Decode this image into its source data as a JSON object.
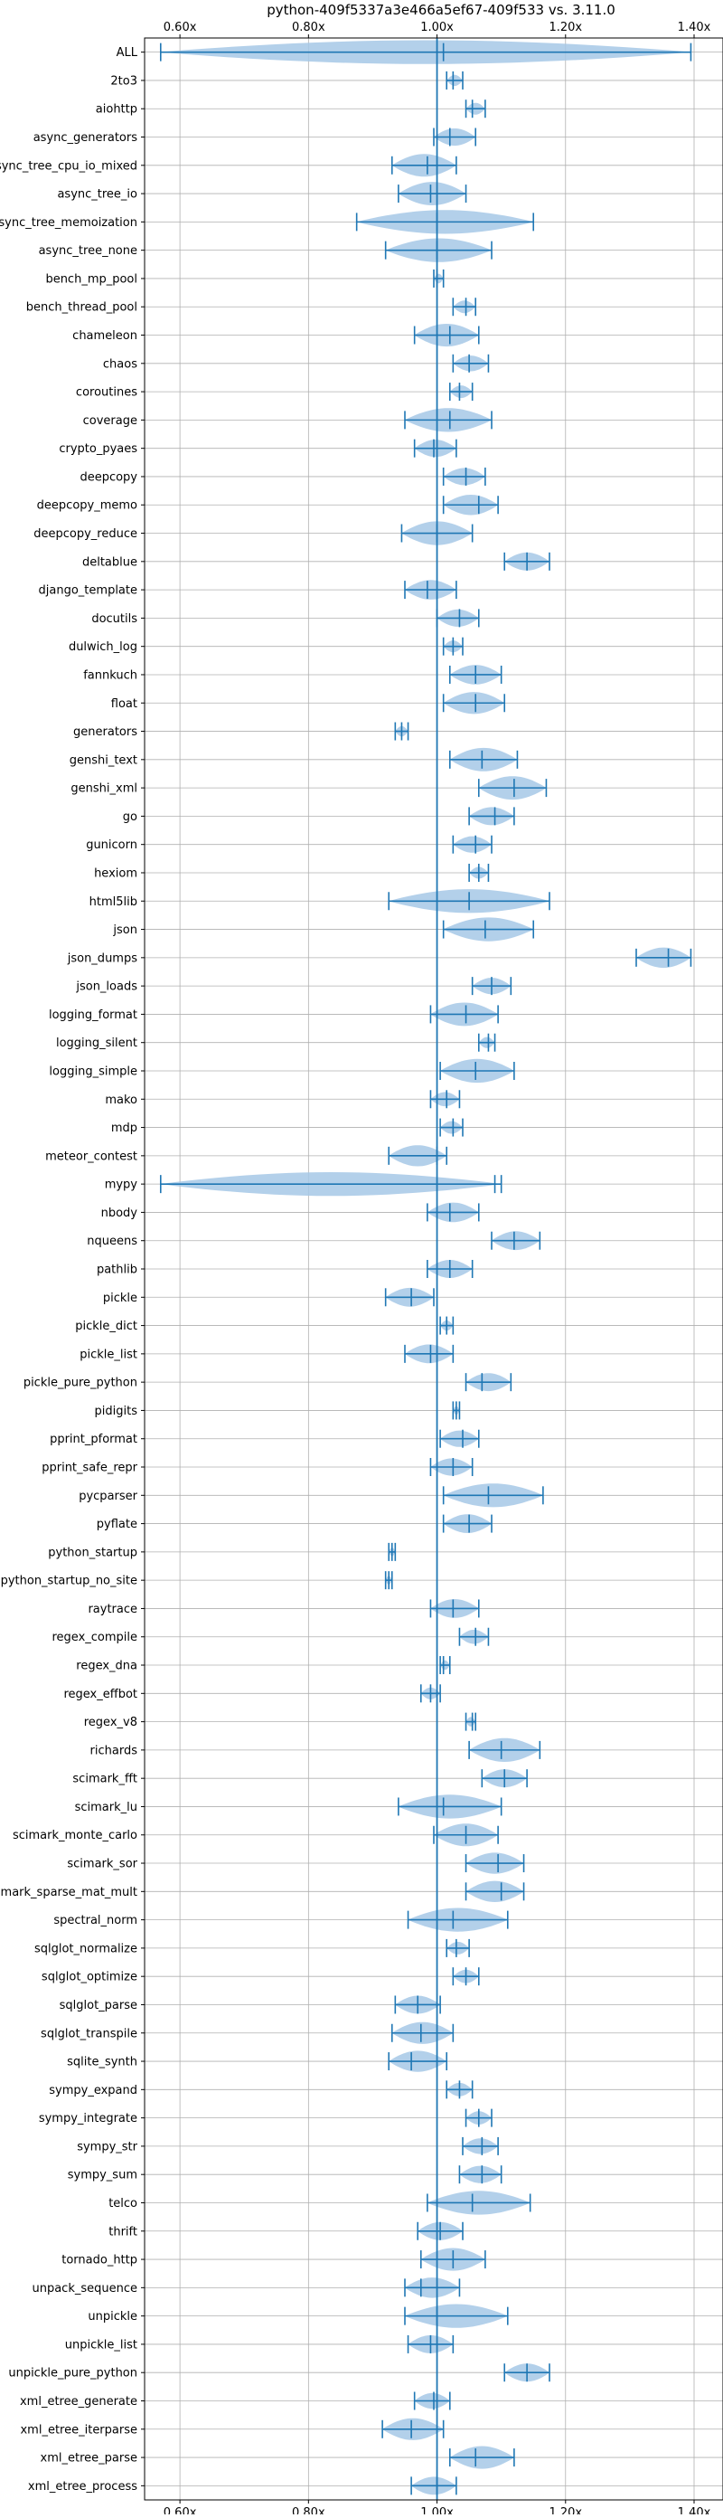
{
  "chart_data": {
    "type": "violin",
    "title": "python-409f5337a3e466a5ef67-409f533 vs. 3.11.0",
    "xlabel": "",
    "ylabel": "",
    "x_ticks": [
      "0.60x",
      "0.80x",
      "1.00x",
      "1.20x",
      "1.40x"
    ],
    "x_tick_values": [
      0.6,
      0.8,
      1.0,
      1.2,
      1.4
    ],
    "xlim": [
      0.545,
      1.445
    ],
    "reference_line": 1.0,
    "grid": true,
    "colors": {
      "violin_fill": "#a6c8e6",
      "line": "#1f77b4",
      "grid": "#b0b0b0"
    },
    "categories": [
      "ALL",
      "2to3",
      "aiohttp",
      "async_generators",
      "async_tree_cpu_io_mixed",
      "async_tree_io",
      "async_tree_memoization",
      "async_tree_none",
      "bench_mp_pool",
      "bench_thread_pool",
      "chameleon",
      "chaos",
      "coroutines",
      "coverage",
      "crypto_pyaes",
      "deepcopy",
      "deepcopy_memo",
      "deepcopy_reduce",
      "deltablue",
      "django_template",
      "docutils",
      "dulwich_log",
      "fannkuch",
      "float",
      "generators",
      "genshi_text",
      "genshi_xml",
      "go",
      "gunicorn",
      "hexiom",
      "html5lib",
      "json",
      "json_dumps",
      "json_loads",
      "logging_format",
      "logging_silent",
      "logging_simple",
      "mako",
      "mdp",
      "meteor_contest",
      "mypy",
      "nbody",
      "nqueens",
      "pathlib",
      "pickle",
      "pickle_dict",
      "pickle_list",
      "pickle_pure_python",
      "pidigits",
      "pprint_pformat",
      "pprint_safe_repr",
      "pycparser",
      "pyflate",
      "python_startup",
      "python_startup_no_site",
      "raytrace",
      "regex_compile",
      "regex_dna",
      "regex_effbot",
      "regex_v8",
      "richards",
      "scimark_fft",
      "scimark_lu",
      "scimark_monte_carlo",
      "scimark_sor",
      "scimark_sparse_mat_mult",
      "spectral_norm",
      "sqlglot_normalize",
      "sqlglot_optimize",
      "sqlglot_parse",
      "sqlglot_transpile",
      "sqlite_synth",
      "sympy_expand",
      "sympy_integrate",
      "sympy_str",
      "sympy_sum",
      "telco",
      "thrift",
      "tornado_http",
      "unpack_sequence",
      "unpickle",
      "unpickle_list",
      "unpickle_pure_python",
      "xml_etree_generate",
      "xml_etree_iterparse",
      "xml_etree_parse",
      "xml_etree_process"
    ],
    "min": [
      0.57,
      1.015,
      1.045,
      0.995,
      0.93,
      0.94,
      0.875,
      0.92,
      0.995,
      1.025,
      0.965,
      1.025,
      1.02,
      0.95,
      0.965,
      1.01,
      1.01,
      0.945,
      1.105,
      0.95,
      1.0,
      1.01,
      1.02,
      1.01,
      0.935,
      1.02,
      1.065,
      1.05,
      1.025,
      1.05,
      0.925,
      1.01,
      1.31,
      1.055,
      0.99,
      1.065,
      1.005,
      0.99,
      1.005,
      0.925,
      0.57,
      0.985,
      1.085,
      0.985,
      0.92,
      1.005,
      0.95,
      1.045,
      1.025,
      1.005,
      0.99,
      1.01,
      1.01,
      0.925,
      0.92,
      0.99,
      1.035,
      1.005,
      0.975,
      1.045,
      1.05,
      1.07,
      0.94,
      0.995,
      1.045,
      1.045,
      0.955,
      1.015,
      1.025,
      0.935,
      0.93,
      0.925,
      1.015,
      1.045,
      1.04,
      1.035,
      0.985,
      0.97,
      0.975,
      0.95,
      0.95,
      0.955,
      1.105,
      0.965,
      0.915,
      1.02,
      0.96
    ],
    "median": [
      1.01,
      1.025,
      1.055,
      1.02,
      0.985,
      0.99,
      1.0,
      1.0,
      1.0,
      1.045,
      1.02,
      1.05,
      1.035,
      1.02,
      0.995,
      1.045,
      1.065,
      1.0,
      1.14,
      0.985,
      1.035,
      1.025,
      1.06,
      1.06,
      0.945,
      1.07,
      1.12,
      1.09,
      1.06,
      1.065,
      1.05,
      1.075,
      1.36,
      1.085,
      1.045,
      1.08,
      1.06,
      1.015,
      1.025,
      1.0,
      1.09,
      1.02,
      1.12,
      1.02,
      0.96,
      1.015,
      0.99,
      1.07,
      1.03,
      1.04,
      1.025,
      1.08,
      1.05,
      0.93,
      0.925,
      1.025,
      1.06,
      1.01,
      0.99,
      1.055,
      1.1,
      1.105,
      1.01,
      1.045,
      1.095,
      1.1,
      1.025,
      1.03,
      1.045,
      0.97,
      0.975,
      0.96,
      1.035,
      1.065,
      1.07,
      1.07,
      1.055,
      1.005,
      1.025,
      0.975,
      1.0,
      0.99,
      1.14,
      0.995,
      0.96,
      1.06,
      1.0
    ],
    "max": [
      1.395,
      1.04,
      1.075,
      1.06,
      1.03,
      1.045,
      1.15,
      1.085,
      1.01,
      1.06,
      1.065,
      1.08,
      1.055,
      1.085,
      1.03,
      1.075,
      1.095,
      1.055,
      1.175,
      1.03,
      1.065,
      1.04,
      1.1,
      1.105,
      0.955,
      1.125,
      1.17,
      1.12,
      1.085,
      1.08,
      1.175,
      1.15,
      1.395,
      1.115,
      1.095,
      1.09,
      1.12,
      1.035,
      1.04,
      1.015,
      1.1,
      1.065,
      1.16,
      1.055,
      0.995,
      1.025,
      1.025,
      1.115,
      1.035,
      1.065,
      1.055,
      1.165,
      1.085,
      0.935,
      0.93,
      1.065,
      1.08,
      1.02,
      1.005,
      1.06,
      1.16,
      1.14,
      1.1,
      1.095,
      1.135,
      1.135,
      1.11,
      1.05,
      1.065,
      1.005,
      1.025,
      1.015,
      1.055,
      1.085,
      1.095,
      1.1,
      1.145,
      1.04,
      1.075,
      1.035,
      1.11,
      1.025,
      1.175,
      1.02,
      1.01,
      1.12,
      1.03
    ]
  }
}
